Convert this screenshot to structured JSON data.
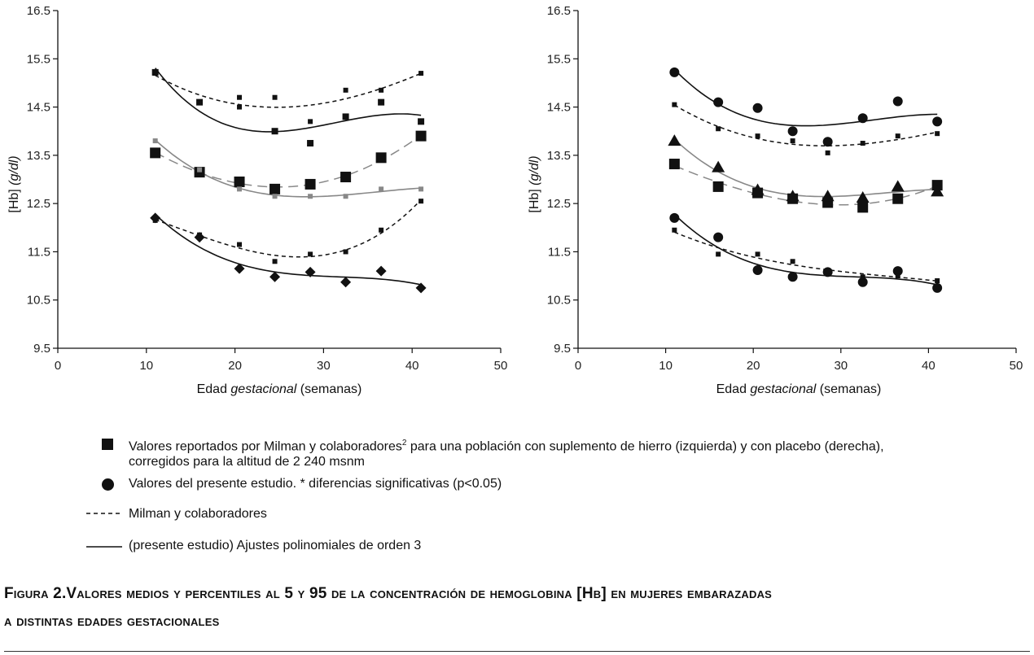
{
  "chart_data": [
    {
      "type": "scatter",
      "panel": "left",
      "xlabel_plain": "Edad ",
      "xlabel_italic": "gestacional",
      "xlabel_tail": " (semanas)",
      "ylabel_plain": "[Hb] ",
      "ylabel_italic": "(g/dl)",
      "xlim": [
        0,
        50
      ],
      "ylim": [
        9.5,
        16.5
      ],
      "xticks": [
        "0",
        "10",
        "20",
        "30",
        "40",
        "50"
      ],
      "yticks": [
        "9.5",
        "10.5",
        "11.5",
        "12.5",
        "13.5",
        "14.5",
        "15.5",
        "16.5"
      ],
      "series": [
        {
          "name": "Milman P95",
          "role": "milman-pct",
          "style": "dashed",
          "color": "#111111",
          "marker": "small-square",
          "points": [
            [
              11,
              15.2
            ],
            [
              16,
              14.6
            ],
            [
              20.5,
              14.7
            ],
            [
              20.5,
              14.5
            ],
            [
              24.5,
              14.7
            ],
            [
              28.5,
              14.2
            ],
            [
              32.5,
              14.85
            ],
            [
              36.5,
              14.85
            ],
            [
              41,
              15.2
            ]
          ]
        },
        {
          "name": "Presente P95",
          "role": "present-pct",
          "style": "solid",
          "color": "#111111",
          "marker": "square",
          "points": [
            [
              11,
              15.22
            ],
            [
              16,
              14.6
            ],
            [
              24.5,
              14.0
            ],
            [
              28.5,
              13.75
            ],
            [
              32.5,
              14.3
            ],
            [
              36.5,
              14.6
            ],
            [
              41,
              14.2
            ]
          ]
        },
        {
          "name": "Milman media",
          "role": "milman-mean",
          "style": "dashed",
          "color": "#888888",
          "marker": "large-square",
          "points": [
            [
              11,
              13.55
            ],
            [
              16,
              13.15
            ],
            [
              20.5,
              12.95
            ],
            [
              24.5,
              12.8
            ],
            [
              28.5,
              12.9
            ],
            [
              32.5,
              13.05
            ],
            [
              36.5,
              13.45
            ],
            [
              41,
              13.9
            ]
          ]
        },
        {
          "name": "Presente media",
          "role": "present-mean",
          "style": "solid",
          "color": "#888888",
          "marker": "small-square",
          "points": [
            [
              11,
              13.8
            ],
            [
              16,
              13.2
            ],
            [
              20.5,
              12.8
            ],
            [
              24.5,
              12.65
            ],
            [
              28.5,
              12.65
            ],
            [
              32.5,
              12.65
            ],
            [
              36.5,
              12.8
            ],
            [
              41,
              12.8
            ]
          ]
        },
        {
          "name": "Milman P5",
          "role": "milman-pct",
          "style": "dashed",
          "color": "#111111",
          "marker": "small-square",
          "points": [
            [
              11,
              12.15
            ],
            [
              16,
              11.85
            ],
            [
              20.5,
              11.65
            ],
            [
              24.5,
              11.3
            ],
            [
              28.5,
              11.45
            ],
            [
              32.5,
              11.5
            ],
            [
              36.5,
              11.95
            ],
            [
              41,
              12.55
            ]
          ]
        },
        {
          "name": "Presente P5",
          "role": "present-pct",
          "style": "solid",
          "color": "#111111",
          "marker": "diamond",
          "points": [
            [
              11,
              12.2
            ],
            [
              16,
              11.8
            ],
            [
              20.5,
              11.15
            ],
            [
              24.5,
              10.98
            ],
            [
              28.5,
              11.08
            ],
            [
              32.5,
              10.87
            ],
            [
              36.5,
              11.1
            ],
            [
              41,
              10.75
            ]
          ]
        }
      ]
    },
    {
      "type": "scatter",
      "panel": "right",
      "xlabel_plain": "Edad ",
      "xlabel_italic": "gestacional",
      "xlabel_tail": " (semanas)",
      "ylabel_plain": "[Hb] ",
      "ylabel_italic": "(g/dl)",
      "xlim": [
        0,
        50
      ],
      "ylim": [
        9.5,
        16.5
      ],
      "xticks": [
        "0",
        "10",
        "20",
        "30",
        "40",
        "50"
      ],
      "yticks": [
        "9.5",
        "10.5",
        "11.5",
        "12.5",
        "13.5",
        "14.5",
        "15.5",
        "16.5"
      ],
      "series": [
        {
          "name": "Presente P95",
          "role": "present-pct",
          "style": "solid",
          "color": "#111111",
          "marker": "circle",
          "points": [
            [
              11,
              15.22
            ],
            [
              16,
              14.6
            ],
            [
              20.5,
              14.48
            ],
            [
              24.5,
              14.0
            ],
            [
              28.5,
              13.78
            ],
            [
              32.5,
              14.27
            ],
            [
              36.5,
              14.62
            ],
            [
              41,
              14.2
            ]
          ]
        },
        {
          "name": "Milman P95",
          "role": "milman-pct",
          "style": "dashed",
          "color": "#111111",
          "marker": "small-square",
          "points": [
            [
              11,
              14.55
            ],
            [
              16,
              14.05
            ],
            [
              20.5,
              13.9
            ],
            [
              24.5,
              13.8
            ],
            [
              28.5,
              13.55
            ],
            [
              32.5,
              13.75
            ],
            [
              36.5,
              13.9
            ],
            [
              41,
              13.95
            ]
          ]
        },
        {
          "name": "Milman media",
          "role": "milman-mean",
          "style": "dashed",
          "color": "#888888",
          "marker": "large-square",
          "points": [
            [
              11,
              13.32
            ],
            [
              16,
              12.85
            ],
            [
              20.5,
              12.72
            ],
            [
              24.5,
              12.6
            ],
            [
              28.5,
              12.52
            ],
            [
              32.5,
              12.42
            ],
            [
              36.5,
              12.6
            ],
            [
              41,
              12.88
            ]
          ]
        },
        {
          "name": "Presente media",
          "role": "present-mean",
          "style": "solid",
          "color": "#888888",
          "marker": "triangle",
          "points": [
            [
              11,
              13.8
            ],
            [
              16,
              13.25
            ],
            [
              20.5,
              12.78
            ],
            [
              24.5,
              12.65
            ],
            [
              28.5,
              12.65
            ],
            [
              32.5,
              12.62
            ],
            [
              36.5,
              12.85
            ],
            [
              41,
              12.75
            ]
          ]
        },
        {
          "name": "Presente P5",
          "role": "present-pct",
          "style": "solid",
          "color": "#111111",
          "marker": "circle",
          "points": [
            [
              11,
              12.2
            ],
            [
              16,
              11.8
            ],
            [
              20.5,
              11.12
            ],
            [
              24.5,
              10.98
            ],
            [
              28.5,
              11.08
            ],
            [
              32.5,
              10.87
            ],
            [
              36.5,
              11.1
            ],
            [
              41,
              10.75
            ]
          ]
        },
        {
          "name": "Milman P5",
          "role": "milman-pct",
          "style": "dashed",
          "color": "#111111",
          "marker": "small-square",
          "points": [
            [
              11,
              11.95
            ],
            [
              16,
              11.45
            ],
            [
              20.5,
              11.45
            ],
            [
              24.5,
              11.3
            ],
            [
              28.5,
              11.1
            ],
            [
              32.5,
              10.98
            ],
            [
              36.5,
              11.0
            ],
            [
              41,
              10.9
            ]
          ]
        }
      ]
    }
  ],
  "legend": {
    "item1_line1_pre": "Valores reportados por Milman y colaboradores",
    "item1_sup": "2",
    "item1_line1_post": " para una población con suplemento de hierro (izquierda) y con placebo (derecha),",
    "item1_line2": "corregidos para la altitud de 2 240 msnm",
    "item2": "Valores del presente estudio. * diferencias significativas (p<0.05)",
    "item3": "Milman y colaboradores",
    "item4": "(presente estudio) Ajustes polinomiales de orden 3"
  },
  "caption": {
    "line1": "Figura 2.Valores medios y percentiles al 5 y 95 de la concentración de hemoglobina [Hb] en mujeres embarazadas",
    "line2": "a distintas edades gestacionales"
  }
}
